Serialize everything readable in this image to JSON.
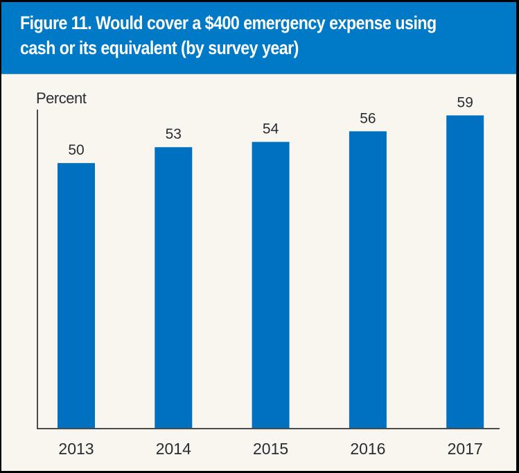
{
  "colors": {
    "header": "#0079c6",
    "bar": "#0070c0",
    "background": "#f9f5ef",
    "text": "#2b2b33",
    "axis": "#4a4a4a"
  },
  "chart_data": {
    "type": "bar",
    "title": "Figure 11. Would cover a $400 emergency expense using cash or its equivalent (by survey year)",
    "title_lines": [
      "Figure 11. Would cover a $400 emergency expense using",
      "cash or its equivalent (by survey year)"
    ],
    "xlabel": "",
    "ylabel": "Percent",
    "categories": [
      "2013",
      "2014",
      "2015",
      "2016",
      "2017"
    ],
    "values": [
      50,
      53,
      54,
      56,
      59
    ],
    "data_labels": [
      "50",
      "53",
      "54",
      "56",
      "59"
    ],
    "ylim": [
      0,
      60
    ],
    "grid": false,
    "legend": "none"
  }
}
